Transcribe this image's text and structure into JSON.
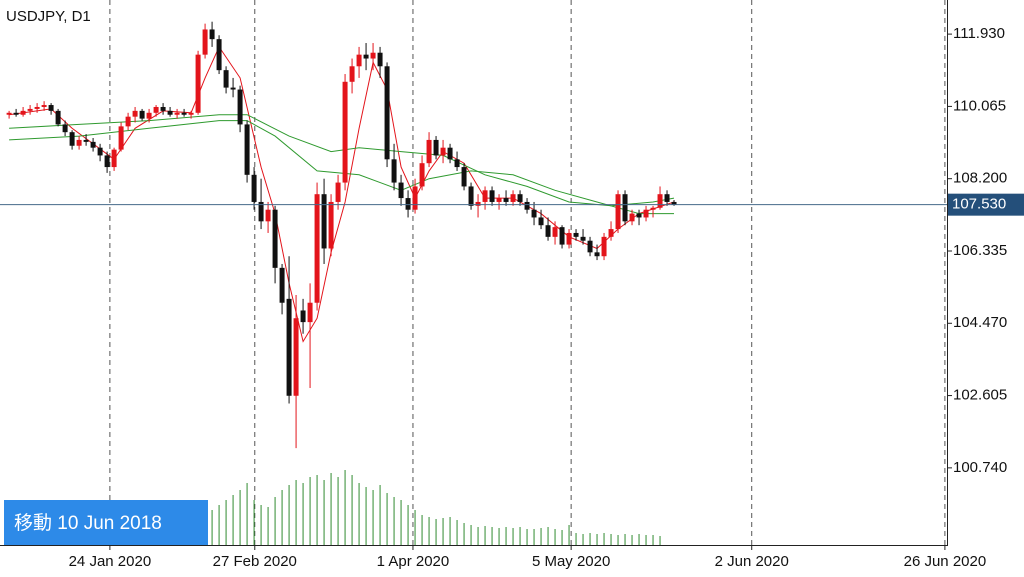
{
  "chart_data": {
    "type": "candlestick",
    "title": "USDJPY, D1",
    "button": "移動 10 Jun 2018",
    "up_color": "#e3141b",
    "down_color": "#111111",
    "xlim": [
      -1.3,
      134
    ],
    "ylim": [
      98.75,
      112.81
    ],
    "yticks": [
      {
        "value": 111.93,
        "label": "111.930"
      },
      110.065,
      {
        "value": 108.2,
        "label": "108.200"
      },
      106.335,
      {
        "value": 104.47,
        "label": "104.470"
      },
      102.605,
      {
        "value": 100.74,
        "label": "100.740"
      }
    ],
    "xticks": [
      {
        "value": 14.4,
        "label": "24 Jan 2020"
      },
      {
        "value": 35.1,
        "label": "27 Feb 2020"
      },
      {
        "value": 57.7,
        "label": "1 Apr 2020"
      },
      {
        "value": 80.3,
        "label": "5 May 2020"
      },
      {
        "value": 106.1,
        "label": "2 Jun 2020"
      },
      {
        "value": 133.7,
        "label": "26 Jun 2020"
      }
    ],
    "last_price": {
      "value": 107.53,
      "label": "107.530"
    },
    "ohlc": [
      [
        109.85,
        109.95,
        109.75,
        109.9
      ],
      [
        109.9,
        110.0,
        109.8,
        109.85
      ],
      [
        109.85,
        110.05,
        109.8,
        109.95
      ],
      [
        109.95,
        110.1,
        109.85,
        110.0
      ],
      [
        110.0,
        110.15,
        109.9,
        110.05
      ],
      [
        110.05,
        110.2,
        109.95,
        110.1
      ],
      [
        110.1,
        110.15,
        109.85,
        109.95
      ],
      [
        109.95,
        110.0,
        109.55,
        109.6
      ],
      [
        109.6,
        109.7,
        109.3,
        109.4
      ],
      [
        109.4,
        109.45,
        108.95,
        109.05
      ],
      [
        109.05,
        109.3,
        108.95,
        109.2
      ],
      [
        109.2,
        109.35,
        109.05,
        109.15
      ],
      [
        109.15,
        109.25,
        108.9,
        109.0
      ],
      [
        109.0,
        109.1,
        108.65,
        108.8
      ],
      [
        108.8,
        108.9,
        108.35,
        108.5
      ],
      [
        108.5,
        109.0,
        108.4,
        108.95
      ],
      [
        108.95,
        109.65,
        108.9,
        109.55
      ],
      [
        109.55,
        109.9,
        109.45,
        109.8
      ],
      [
        109.8,
        110.05,
        109.65,
        109.95
      ],
      [
        109.95,
        110.0,
        109.7,
        109.75
      ],
      [
        109.75,
        110.0,
        109.65,
        109.9
      ],
      [
        109.9,
        110.1,
        109.8,
        110.05
      ],
      [
        110.05,
        110.15,
        109.85,
        109.95
      ],
      [
        109.95,
        110.05,
        109.8,
        109.85
      ],
      [
        109.85,
        110.0,
        109.75,
        109.9
      ],
      [
        109.9,
        110.0,
        109.8,
        109.85
      ],
      [
        109.85,
        109.95,
        109.75,
        109.9
      ],
      [
        109.9,
        111.5,
        109.85,
        111.4
      ],
      [
        111.4,
        112.2,
        111.3,
        112.05
      ],
      [
        112.05,
        112.25,
        111.6,
        111.8
      ],
      [
        111.8,
        111.9,
        110.9,
        111.0
      ],
      [
        111.0,
        111.1,
        110.4,
        110.55
      ],
      [
        110.55,
        110.8,
        110.3,
        110.5
      ],
      [
        110.5,
        110.6,
        109.4,
        109.6
      ],
      [
        109.6,
        109.7,
        108.1,
        108.3
      ],
      [
        108.3,
        108.5,
        107.4,
        107.6
      ],
      [
        107.6,
        108.2,
        106.9,
        107.1
      ],
      [
        107.1,
        107.6,
        106.8,
        107.4
      ],
      [
        107.4,
        107.5,
        105.5,
        105.9
      ],
      [
        105.9,
        106.0,
        104.7,
        105.0
      ],
      [
        105.1,
        106.2,
        102.4,
        102.6
      ],
      [
        102.6,
        105.2,
        101.25,
        104.6
      ],
      [
        104.8,
        105.1,
        104.2,
        104.5
      ],
      [
        104.5,
        105.5,
        102.8,
        105.0
      ],
      [
        105.0,
        108.1,
        104.8,
        107.8
      ],
      [
        107.8,
        108.2,
        106.0,
        106.4
      ],
      [
        106.4,
        107.8,
        106.2,
        107.6
      ],
      [
        107.6,
        108.3,
        107.4,
        108.1
      ],
      [
        108.1,
        110.9,
        107.9,
        110.7
      ],
      [
        110.7,
        111.3,
        110.4,
        111.1
      ],
      [
        111.1,
        111.6,
        110.8,
        111.4
      ],
      [
        111.4,
        111.7,
        111.0,
        111.3
      ],
      [
        111.3,
        111.7,
        111.0,
        111.45
      ],
      [
        111.45,
        111.6,
        110.8,
        111.1
      ],
      [
        111.1,
        111.2,
        108.5,
        108.7
      ],
      [
        108.7,
        109.1,
        107.9,
        108.1
      ],
      [
        108.1,
        108.3,
        107.5,
        107.7
      ],
      [
        107.7,
        107.9,
        107.2,
        107.4
      ],
      [
        107.4,
        108.2,
        107.3,
        108.0
      ],
      [
        108.0,
        108.8,
        107.9,
        108.6
      ],
      [
        108.6,
        109.4,
        108.5,
        109.2
      ],
      [
        109.2,
        109.3,
        108.7,
        108.8
      ],
      [
        108.8,
        109.2,
        108.6,
        109.0
      ],
      [
        109.0,
        109.1,
        108.6,
        108.7
      ],
      [
        108.7,
        108.9,
        108.4,
        108.5
      ],
      [
        108.5,
        108.6,
        107.9,
        108.0
      ],
      [
        108.0,
        108.1,
        107.4,
        107.5
      ],
      [
        107.5,
        107.8,
        107.2,
        107.6
      ],
      [
        107.6,
        108.0,
        107.4,
        107.9
      ],
      [
        107.9,
        108.0,
        107.5,
        107.6
      ],
      [
        107.6,
        107.8,
        107.4,
        107.7
      ],
      [
        107.7,
        107.9,
        107.5,
        107.6
      ],
      [
        107.6,
        107.9,
        107.5,
        107.8
      ],
      [
        107.8,
        107.9,
        107.5,
        107.6
      ],
      [
        107.6,
        107.7,
        107.3,
        107.4
      ],
      [
        107.4,
        107.6,
        107.0,
        107.2
      ],
      [
        107.2,
        107.4,
        106.9,
        107.0
      ],
      [
        107.0,
        107.2,
        106.6,
        106.7
      ],
      [
        106.7,
        107.1,
        106.5,
        106.95
      ],
      [
        106.95,
        107.0,
        106.4,
        106.5
      ],
      [
        106.5,
        106.9,
        106.4,
        106.8
      ],
      [
        106.8,
        106.9,
        106.6,
        106.7
      ],
      [
        106.7,
        106.9,
        106.5,
        106.6
      ],
      [
        106.6,
        106.7,
        106.2,
        106.3
      ],
      [
        106.3,
        106.5,
        106.1,
        106.2
      ],
      [
        106.2,
        106.8,
        106.1,
        106.7
      ],
      [
        106.7,
        107.1,
        106.6,
        106.9
      ],
      [
        106.9,
        107.9,
        106.8,
        107.8
      ],
      [
        107.8,
        107.9,
        107.0,
        107.1
      ],
      [
        107.1,
        107.4,
        107.0,
        107.3
      ],
      [
        107.3,
        107.4,
        107.0,
        107.2
      ],
      [
        107.2,
        107.5,
        107.1,
        107.4
      ],
      [
        107.4,
        107.5,
        107.2,
        107.45
      ],
      [
        107.45,
        108.0,
        107.4,
        107.8
      ],
      [
        107.8,
        107.9,
        107.5,
        107.6
      ],
      [
        107.6,
        107.65,
        107.5,
        107.53
      ]
    ],
    "volume_color": "#2f8a2f",
    "vlim": [
      0,
      100
    ],
    "volume": [
      null,
      null,
      null,
      null,
      null,
      null,
      null,
      null,
      null,
      null,
      null,
      null,
      null,
      null,
      null,
      null,
      null,
      null,
      null,
      null,
      null,
      null,
      null,
      null,
      null,
      null,
      null,
      null,
      40,
      35,
      40,
      45,
      50,
      55,
      62,
      45,
      40,
      38,
      48,
      55,
      60,
      65,
      62,
      68,
      70,
      65,
      72,
      68,
      75,
      70,
      62,
      58,
      55,
      60,
      52,
      48,
      45,
      40,
      35,
      30,
      28,
      26,
      27,
      28,
      25,
      22,
      20,
      18,
      19,
      18,
      17,
      18,
      17,
      18,
      16,
      16,
      17,
      18,
      16,
      15,
      20,
      12,
      11,
      12,
      11,
      12,
      11,
      10,
      11,
      10,
      11,
      10,
      10,
      9
    ],
    "ma": [
      {
        "color": "#e3141b",
        "x": [
          0,
          6,
          9,
          12,
          15,
          18,
          22,
          26,
          28,
          30,
          33,
          36,
          38,
          40,
          42,
          44,
          46,
          48,
          50,
          52,
          54,
          56,
          58,
          60,
          62,
          65,
          68,
          72,
          76,
          80,
          84,
          87,
          90,
          95
        ],
        "values": [
          109.85,
          110.0,
          109.5,
          109.1,
          108.7,
          109.5,
          109.95,
          109.9,
          110.8,
          111.6,
          110.8,
          108.5,
          107.3,
          105.5,
          104.0,
          104.6,
          106.3,
          107.6,
          109.5,
          111.2,
          110.5,
          108.5,
          107.7,
          108.4,
          108.9,
          108.6,
          107.7,
          107.7,
          107.3,
          106.7,
          106.4,
          106.9,
          107.3,
          107.6
        ]
      },
      {
        "color": "#2f9a2f",
        "x": [
          0,
          10,
          20,
          30,
          34,
          40,
          46,
          50,
          56,
          62,
          68,
          74,
          80,
          86,
          92,
          95
        ],
        "values": [
          109.5,
          109.6,
          109.7,
          109.85,
          109.85,
          109.3,
          108.9,
          109.0,
          108.9,
          108.8,
          108.3,
          108.0,
          107.6,
          107.5,
          107.6,
          107.7
        ]
      },
      {
        "color": "#2f9a2f",
        "x": [
          0,
          10,
          20,
          30,
          34,
          38,
          44,
          50,
          56,
          60,
          66,
          72,
          78,
          84,
          90,
          95
        ],
        "values": [
          109.2,
          109.3,
          109.5,
          109.7,
          109.7,
          109.3,
          108.4,
          108.3,
          107.9,
          108.2,
          108.4,
          108.3,
          107.9,
          107.6,
          107.3,
          107.3
        ]
      }
    ]
  }
}
